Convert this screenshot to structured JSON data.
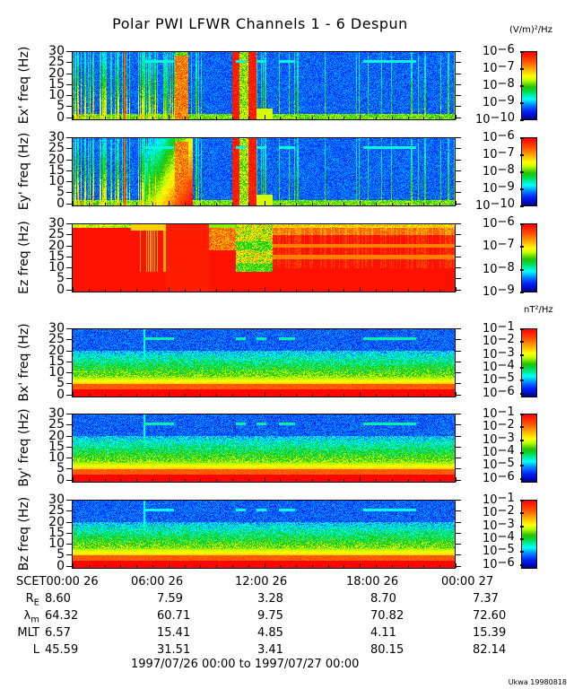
{
  "title": "Polar PWI LFWR Channels 1 - 6 Despun",
  "footer": "Ukwa 19980818",
  "chart_data": {
    "type": "heatmap",
    "title": "Polar PWI LFWR Channels 1 - 6 Despun",
    "xlim_hours": [
      0,
      24
    ],
    "x_tick_labels": [
      "SCET00:00 26",
      "06:00 26",
      "12:00 26",
      "18:00 26",
      "00:00 27"
    ],
    "date_range": "1997/07/26 00:00 to 1997/07/27 00:00",
    "colormap": "rainbow (blue to red)",
    "panels": [
      {
        "ylabel": "Ex' freq (Hz)",
        "ylim": [
          0,
          30
        ],
        "yticks": [
          "0",
          "5",
          "10",
          "15",
          "20",
          "25",
          "30"
        ],
        "unit": "(V/m)²/Hz",
        "cbar_ticks": [
          "-6",
          "-7",
          "-8",
          "-9",
          "-10"
        ],
        "cbar_range": [
          -10,
          -6
        ]
      },
      {
        "ylabel": "Ey' freq (Hz)",
        "ylim": [
          0,
          30
        ],
        "yticks": [
          "0",
          "5",
          "10",
          "15",
          "20",
          "25",
          "30"
        ],
        "unit": "",
        "cbar_ticks": [
          "-6",
          "-7",
          "-8",
          "-9",
          "-10"
        ],
        "cbar_range": [
          -10,
          -6
        ]
      },
      {
        "ylabel": "Ez freq (Hz)",
        "ylim": [
          0,
          30
        ],
        "yticks": [
          "0",
          "5",
          "10",
          "15",
          "20",
          "25",
          "30"
        ],
        "unit": "",
        "cbar_ticks": [
          "-6",
          "-7",
          "-8",
          "-9"
        ],
        "cbar_range": [
          -9,
          -6
        ]
      },
      {
        "ylabel": "Bx' freq (Hz)",
        "ylim": [
          0,
          30
        ],
        "yticks": [
          "0",
          "5",
          "10",
          "15",
          "20",
          "25",
          "30"
        ],
        "unit": "nT²/Hz",
        "cbar_ticks": [
          "-1",
          "-2",
          "-3",
          "-4",
          "-5",
          "-6"
        ],
        "cbar_range": [
          -6.3,
          -1
        ]
      },
      {
        "ylabel": "By' freq (Hz)",
        "ylim": [
          0,
          30
        ],
        "yticks": [
          "0",
          "5",
          "10",
          "15",
          "20",
          "25",
          "30"
        ],
        "unit": "",
        "cbar_ticks": [
          "-1",
          "-2",
          "-3",
          "-4",
          "-5",
          "-6"
        ],
        "cbar_range": [
          -6.3,
          -1
        ]
      },
      {
        "ylabel": "Bz freq (Hz)",
        "ylim": [
          0,
          30
        ],
        "yticks": [
          "0",
          "5",
          "10",
          "15",
          "20",
          "25",
          "30"
        ],
        "unit": "",
        "cbar_ticks": [
          "-1",
          "-2",
          "-3",
          "-4",
          "-5",
          "-6"
        ],
        "cbar_range": [
          -6.3,
          -1
        ]
      }
    ],
    "ephemeris": {
      "rows": [
        {
          "label": "R",
          "sub": "E",
          "values": [
            "8.60",
            "7.59",
            "3.28",
            "8.70",
            "7.37"
          ]
        },
        {
          "label": "λ",
          "sub": "m",
          "values": [
            "64.32",
            "60.71",
            "9.75",
            "70.82",
            "72.60"
          ]
        },
        {
          "label": "MLT",
          "sub": "",
          "values": [
            "6.57",
            "15.41",
            "4.85",
            "4.11",
            "15.39"
          ]
        },
        {
          "label": "L",
          "sub": "",
          "values": [
            "45.59",
            "31.51",
            "3.41",
            "80.15",
            "82.14"
          ]
        }
      ]
    }
  }
}
